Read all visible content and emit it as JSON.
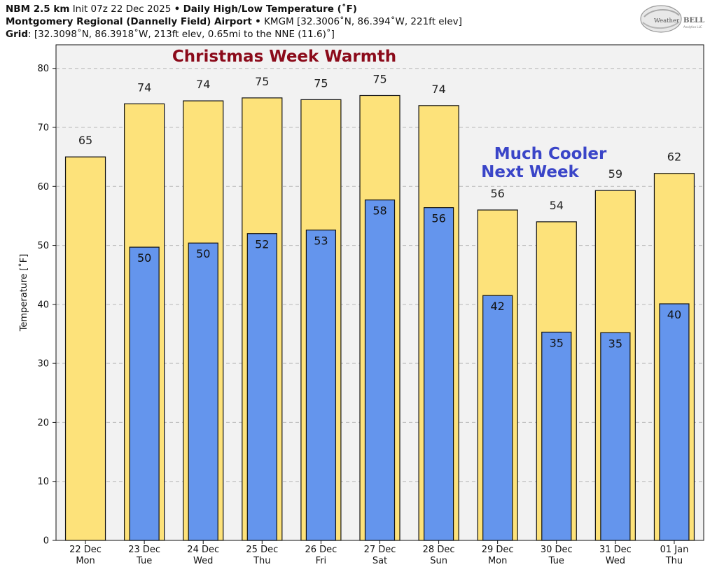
{
  "header": {
    "line1_bold": "NBM 2.5 km",
    "line1_init": "Init 07z 22 Dec 2025",
    "line1_sep": "•",
    "line1_title": "Daily High/Low Temperature (˚F)",
    "line2_station": "Montgomery Regional (Dannelly Field) Airport",
    "line2_sep": "•",
    "line2_info": "KMGM [32.3006˚N, 86.394˚W, 221ft elev]",
    "line3_label": "Grid",
    "line3_info": ": [32.3098˚N, 86.3918˚W, 213ft elev, 0.65mi to the NNE (11.6)˚]"
  },
  "logo": {
    "text_a": "Weather",
    "text_b": "BELL",
    "sub": "Analytics LLC"
  },
  "annotations": {
    "warm": "Christmas Week Warmth",
    "cool_line1": "Much Cooler",
    "cool_line2": "Next Week"
  },
  "chart_data": {
    "type": "bar",
    "ylabel": "Temperature [˚F]",
    "ylim": [
      0,
      84
    ],
    "yticks": [
      0,
      10,
      20,
      30,
      40,
      50,
      60,
      70,
      80
    ],
    "grid": true,
    "categories": [
      {
        "date": "22 Dec",
        "day": "Mon"
      },
      {
        "date": "23 Dec",
        "day": "Tue"
      },
      {
        "date": "24 Dec",
        "day": "Wed"
      },
      {
        "date": "25 Dec",
        "day": "Thu"
      },
      {
        "date": "26 Dec",
        "day": "Fri"
      },
      {
        "date": "27 Dec",
        "day": "Sat"
      },
      {
        "date": "28 Dec",
        "day": "Sun"
      },
      {
        "date": "29 Dec",
        "day": "Mon"
      },
      {
        "date": "30 Dec",
        "day": "Tue"
      },
      {
        "date": "31 Dec",
        "day": "Wed"
      },
      {
        "date": "01 Jan",
        "day": "Thu"
      }
    ],
    "series": [
      {
        "name": "High",
        "color": "#FDE27A",
        "values": [
          65.0,
          74.0,
          74.5,
          75.0,
          74.7,
          75.4,
          73.7,
          56.0,
          54.0,
          59.3,
          62.2
        ],
        "labels": [
          "65",
          "74",
          "74",
          "75",
          "75",
          "75",
          "74",
          "56",
          "54",
          "59",
          "62"
        ]
      },
      {
        "name": "Low",
        "color": "#6495ED",
        "values": [
          null,
          49.7,
          50.4,
          52.0,
          52.6,
          57.7,
          56.4,
          41.5,
          35.3,
          35.2,
          40.1
        ],
        "labels": [
          "",
          "50",
          "50",
          "52",
          "53",
          "58",
          "56",
          "42",
          "35",
          "35",
          "40"
        ]
      }
    ],
    "colors": {
      "plot_bg": "#F2F2F2",
      "warm_text": "#8B0A1A",
      "cool_text": "#3A45C8",
      "bar_edge": "#111111"
    }
  }
}
